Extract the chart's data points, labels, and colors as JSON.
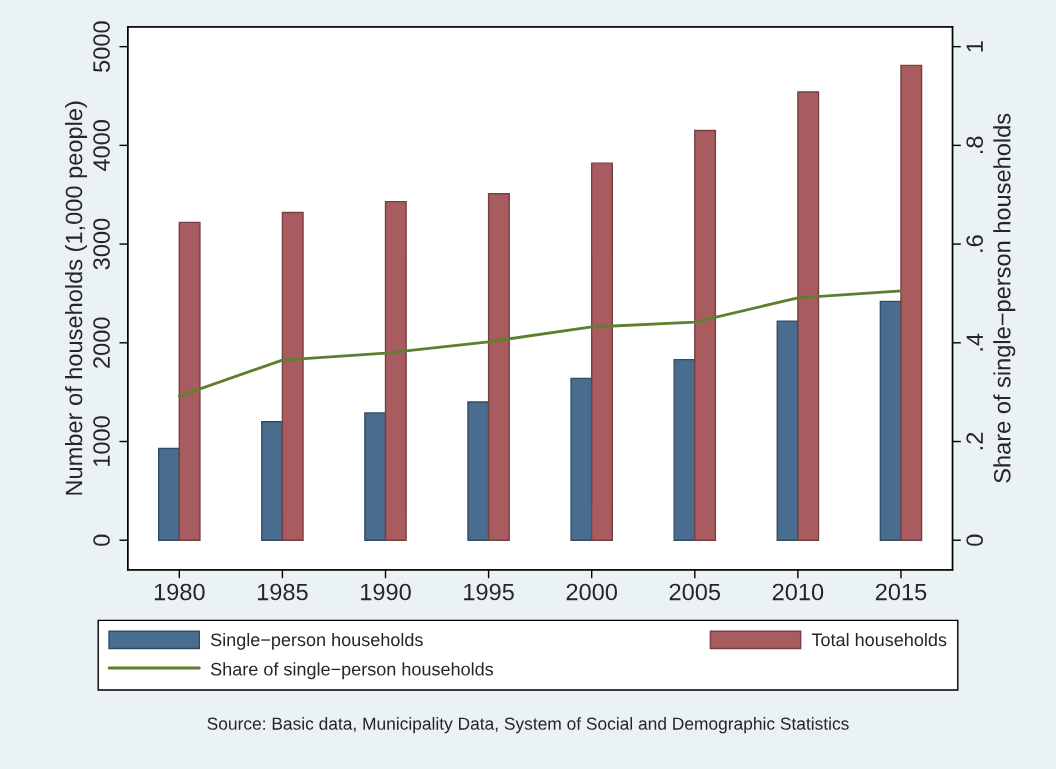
{
  "chart_data": {
    "type": "bar",
    "categories": [
      "1980",
      "1985",
      "1990",
      "1995",
      "2000",
      "2005",
      "2010",
      "2015"
    ],
    "ylabel": "Number of households (1,000 people)",
    "y2label": "Share of single−person households",
    "ylim": [
      -300,
      5200
    ],
    "yticks": [
      0,
      1000,
      2000,
      3000,
      4000,
      5000
    ],
    "y2lim": [
      -0.06,
      1.04
    ],
    "y2ticks": [
      {
        "value": 0,
        "label": "0"
      },
      {
        "value": 0.2,
        "label": ".2"
      },
      {
        "value": 0.4,
        "label": ".4"
      },
      {
        "value": 0.6,
        "label": ".6"
      },
      {
        "value": 0.8,
        "label": ".8"
      },
      {
        "value": 1,
        "label": "1"
      }
    ],
    "series": [
      {
        "name": "Single−person households",
        "color": "#486d8f",
        "values": [
          930,
          1200,
          1290,
          1400,
          1640,
          1830,
          2220,
          2420
        ]
      },
      {
        "name": "Total households",
        "color": "#a85c5f",
        "values": [
          3220,
          3320,
          3430,
          3510,
          3820,
          4150,
          4540,
          4810
        ]
      },
      {
        "name": "Share of single−person households",
        "type": "line",
        "axis": "y2",
        "color": "#5d7f2e",
        "values": [
          0.292,
          0.365,
          0.379,
          0.402,
          0.432,
          0.442,
          0.491,
          0.505
        ]
      }
    ],
    "legend": "bottom",
    "grid": false,
    "annotations": [
      "Source: Basic data, Municipality Data, System of Social and Demographic Statistics"
    ]
  }
}
